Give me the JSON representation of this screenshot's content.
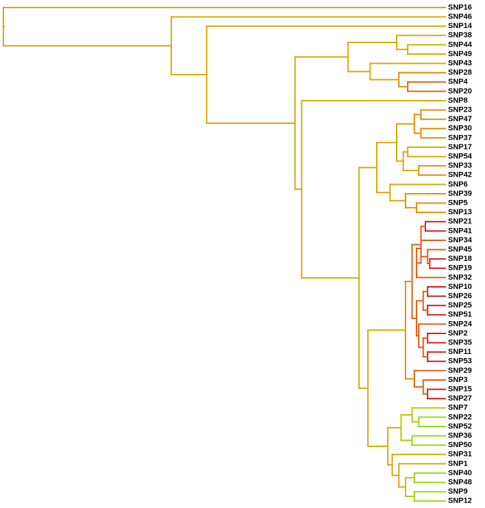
{
  "tree": {
    "type": "dendrogram",
    "orientation": "left-to-right",
    "leaf_order": [
      "SNP16",
      "SNP46",
      "SNP14",
      "SNP38",
      "SNP44",
      "SNP49",
      "SNP43",
      "SNP28",
      "SNP4",
      "SNP20",
      "SNP8",
      "SNP23",
      "SNP47",
      "SNP30",
      "SNP37",
      "SNP17",
      "SNP54",
      "SNP33",
      "SNP42",
      "SNP6",
      "SNP39",
      "SNP5",
      "SNP13",
      "SNP21",
      "SNP41",
      "SNP34",
      "SNP45",
      "SNP18",
      "SNP19",
      "SNP32",
      "SNP10",
      "SNP26",
      "SNP25",
      "SNP51",
      "SNP24",
      "SNP2",
      "SNP35",
      "SNP11",
      "SNP53",
      "SNP29",
      "SNP3",
      "SNP15",
      "SNP27",
      "SNP7",
      "SNP22",
      "SNP52",
      "SNP36",
      "SNP50",
      "SNP31",
      "SNP1",
      "SNP40",
      "SNP48",
      "SNP9",
      "SNP12"
    ],
    "colors": {
      "gold": "#d9a800",
      "orange": "#e88a00",
      "orangered": "#e85a10",
      "red": "#d81818",
      "yellowgreen": "#b8c800",
      "lime": "#98d810"
    },
    "merge_height_range": [
      0,
      1
    ],
    "root": {
      "h": 0.0,
      "c": "gold",
      "ch": [
        "SNP16",
        {
          "h": 0.38,
          "c": "gold",
          "ch": [
            "SNP46",
            {
              "h": 0.46,
              "c": "gold",
              "ch": [
                "SNP14",
                {
                  "h": 0.66,
                  "c": "gold",
                  "ch": [
                    {
                      "h": 0.78,
                      "c": "gold",
                      "ch": [
                        {
                          "h": 0.89,
                          "c": "gold",
                          "ch": [
                            "SNP38",
                            {
                              "h": 0.915,
                              "c": "gold",
                              "ch": [
                                "SNP44",
                                "SNP49"
                              ]
                            }
                          ]
                        },
                        {
                          "h": 0.83,
                          "c": "gold",
                          "ch": [
                            "SNP43",
                            {
                              "h": 0.895,
                              "c": "orange",
                              "ch": [
                                "SNP28",
                                {
                                  "h": 0.915,
                                  "c": "orangered",
                                  "ch": [
                                    "SNP4",
                                    "SNP20"
                                  ]
                                }
                              ]
                            }
                          ]
                        }
                      ]
                    },
                    {
                      "h": 0.675,
                      "c": "gold",
                      "ch": [
                        "SNP8",
                        {
                          "h": 0.805,
                          "c": "gold",
                          "ch": [
                            {
                              "h": 0.845,
                              "c": "gold",
                              "ch": [
                                {
                                  "h": 0.89,
                                  "c": "gold",
                                  "ch": [
                                    {
                                      "h": 0.93,
                                      "c": "orange",
                                      "ch": [
                                        {
                                          "h": 0.945,
                                          "c": "orange",
                                          "ch": [
                                            "SNP23",
                                            "SNP47"
                                          ]
                                        },
                                        {
                                          "h": 0.945,
                                          "c": "orange",
                                          "ch": [
                                            "SNP30",
                                            "SNP37"
                                          ]
                                        }
                                      ]
                                    },
                                    {
                                      "h": 0.905,
                                      "c": "gold",
                                      "ch": [
                                        {
                                          "h": 0.915,
                                          "c": "gold",
                                          "ch": [
                                            "SNP17",
                                            "SNP54"
                                          ]
                                        },
                                        {
                                          "h": 0.94,
                                          "c": "orange",
                                          "ch": [
                                            "SNP33",
                                            "SNP42"
                                          ]
                                        }
                                      ]
                                    }
                                  ]
                                },
                                {
                                  "h": 0.875,
                                  "c": "gold",
                                  "ch": [
                                    "SNP6",
                                    {
                                      "h": 0.91,
                                      "c": "orange",
                                      "ch": [
                                        "SNP39",
                                        {
                                          "h": 0.935,
                                          "c": "orange",
                                          "ch": [
                                            "SNP5",
                                            "SNP13"
                                          ]
                                        }
                                      ]
                                    }
                                  ]
                                }
                              ]
                            },
                            {
                              "h": 0.825,
                              "c": "gold",
                              "ch": [
                                {
                                  "h": 0.91,
                                  "c": "orange",
                                  "ch": [
                                    {
                                      "h": 0.925,
                                      "c": "orangered",
                                      "ch": [
                                        {
                                          "h": 0.945,
                                          "c": "orangered",
                                          "ch": [
                                            {
                                              "h": 0.955,
                                              "c": "red",
                                              "ch": [
                                                "SNP21",
                                                "SNP41"
                                              ]
                                            },
                                            {
                                              "h": 0.935,
                                              "c": "orangered",
                                              "ch": [
                                                {
                                                  "h": 0.945,
                                                  "c": "orangered",
                                                  "ch": [
                                                    "SNP34",
                                                    {
                                                      "h": 0.96,
                                                      "c": "orangered",
                                                      "ch": [
                                                        "SNP45",
                                                        {
                                                          "h": 0.965,
                                                          "c": "red",
                                                          "ch": [
                                                            "SNP18",
                                                            "SNP19"
                                                          ]
                                                        }
                                                      ]
                                                    }
                                                  ]
                                                },
                                                "SNP32"
                                              ]
                                            }
                                          ]
                                        },
                                        {
                                          "h": 0.935,
                                          "c": "orangered",
                                          "ch": [
                                            {
                                              "h": 0.95,
                                              "c": "orangered",
                                              "ch": [
                                                {
                                                  "h": 0.96,
                                                  "c": "red",
                                                  "ch": [
                                                    "SNP10",
                                                    "SNP26"
                                                  ]
                                                },
                                                {
                                                  "h": 0.96,
                                                  "c": "red",
                                                  "ch": [
                                                    "SNP25",
                                                    "SNP51"
                                                  ]
                                                }
                                              ]
                                            },
                                            {
                                              "h": 0.94,
                                              "c": "orangered",
                                              "ch": [
                                                "SNP24",
                                                {
                                                  "h": 0.95,
                                                  "c": "orangered",
                                                  "ch": [
                                                    {
                                                      "h": 0.96,
                                                      "c": "red",
                                                      "ch": [
                                                        "SNP2",
                                                        "SNP35"
                                                      ]
                                                    },
                                                    {
                                                      "h": 0.96,
                                                      "c": "red",
                                                      "ch": [
                                                        "SNP11",
                                                        "SNP53"
                                                      ]
                                                    }
                                                  ]
                                                }
                                              ]
                                            }
                                          ]
                                        }
                                      ]
                                    },
                                    {
                                      "h": 0.93,
                                      "c": "orangered",
                                      "ch": [
                                        "SNP29",
                                        {
                                          "h": 0.95,
                                          "c": "orangered",
                                          "ch": [
                                            "SNP3",
                                            {
                                              "h": 0.96,
                                              "c": "red",
                                              "ch": [
                                                "SNP15",
                                                "SNP27"
                                              ]
                                            }
                                          ]
                                        }
                                      ]
                                    }
                                  ]
                                },
                                {
                                  "h": 0.845,
                                  "c": "gold",
                                  "ch": [
                                    {
                                      "h": 0.87,
                                      "c": "gold",
                                      "ch": [
                                        {
                                          "h": 0.9,
                                          "c": "yellowgreen",
                                          "ch": [
                                            {
                                              "h": 0.925,
                                              "c": "yellowgreen",
                                              "ch": [
                                                "SNP7",
                                                {
                                                  "h": 0.94,
                                                  "c": "lime",
                                                  "ch": [
                                                    "SNP22",
                                                    "SNP52"
                                                  ]
                                                }
                                              ]
                                            },
                                            {
                                              "h": 0.925,
                                              "c": "lime",
                                              "ch": [
                                                "SNP36",
                                                "SNP50"
                                              ]
                                            }
                                          ]
                                        },
                                        {
                                          "h": 0.88,
                                          "c": "gold",
                                          "ch": [
                                            "SNP31",
                                            {
                                              "h": 0.895,
                                              "c": "gold",
                                              "ch": [
                                                "SNP1",
                                                {
                                                  "h": 0.91,
                                                  "c": "yellowgreen",
                                                  "ch": [
                                                    {
                                                      "h": 0.93,
                                                      "c": "lime",
                                                      "ch": [
                                                        "SNP40",
                                                        "SNP48"
                                                      ]
                                                    },
                                                    {
                                                      "h": 0.93,
                                                      "c": "lime",
                                                      "ch": [
                                                        "SNP9",
                                                        "SNP12"
                                                      ]
                                                    }
                                                  ]
                                                }
                                              ]
                                            }
                                          ]
                                        }
                                      ]
                                    }
                                  ]
                                }
                              ]
                            }
                          ]
                        }
                      ]
                    }
                  ]
                }
              ]
            }
          ]
        }
      ]
    }
  }
}
